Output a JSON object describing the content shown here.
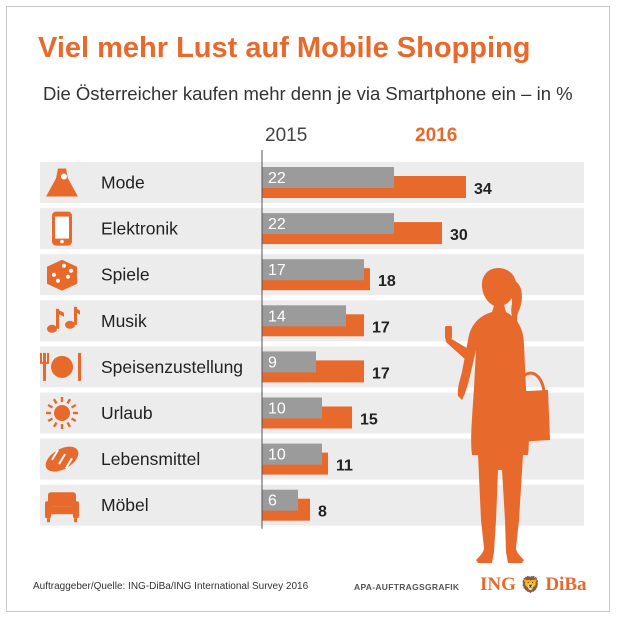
{
  "chart_data": {
    "type": "bar",
    "title": "Viel mehr Lust auf Mobile Shopping",
    "subtitle": "Die Österreicher kaufen mehr denn je via Smartphone ein – in %",
    "categories": [
      "Mode",
      "Elektronik",
      "Spiele",
      "Musik",
      "Speisenzustellung",
      "Urlaub",
      "Lebensmittel",
      "Möbel"
    ],
    "series": [
      {
        "name": "2015",
        "values": [
          22,
          22,
          17,
          14,
          9,
          10,
          10,
          6
        ],
        "color": "#9b9b9b"
      },
      {
        "name": "2016",
        "values": [
          34,
          30,
          18,
          17,
          17,
          15,
          11,
          8
        ],
        "color": "#e8692c"
      }
    ],
    "icons": [
      "dress-icon",
      "smartphone-icon",
      "dice-icon",
      "music-notes-icon",
      "plate-cutlery-icon",
      "sun-icon",
      "bread-icon",
      "armchair-icon"
    ],
    "xlim": [
      0,
      40
    ]
  },
  "footer": {
    "source": "Auftraggeber/Quelle: ING-DiBa/ING International Survey 2016",
    "credit": "APA-AUFTRAGSGRAFIK",
    "logo": "ING DiBa"
  },
  "colors": {
    "accent": "#e8692c",
    "gray_bar": "#9b9b9b",
    "row_bg": "#ececec"
  }
}
